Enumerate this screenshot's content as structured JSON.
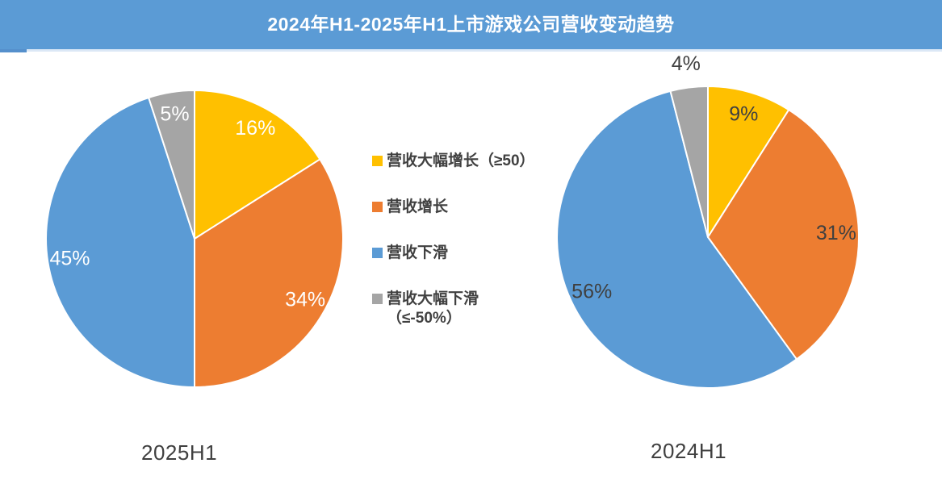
{
  "title": "2024年H1-2025年H1上市游戏公司营收变动趋势",
  "colors": {
    "banner": "#5B9BD5",
    "banner_title_text": "#FFFFFF",
    "body_text": "#404040",
    "increase_large": "#FFC000",
    "increase": "#ED7D31",
    "decrease": "#5B9BD5",
    "decrease_large": "#A5A5A5"
  },
  "legend": {
    "position": "center-between-pies",
    "items": [
      {
        "label": "营收大幅增长（≥50）",
        "color": "#FFC000"
      },
      {
        "label": "营收增长",
        "color": "#ED7D31"
      },
      {
        "label": "营收下滑",
        "color": "#5B9BD5"
      },
      {
        "label": "营收大幅下滑（≤-50%）",
        "color": "#A5A5A5"
      }
    ]
  },
  "chart_data": [
    {
      "type": "pie",
      "title": "2025H1",
      "categories": [
        "营收大幅增长（≥50）",
        "营收增长",
        "营收下滑",
        "营收大幅下滑（≤-50%）"
      ],
      "values": [
        16,
        34,
        45,
        5
      ],
      "labels": [
        "16%",
        "34%",
        "45%",
        "5%"
      ],
      "colors": [
        "#FFC000",
        "#ED7D31",
        "#5B9BD5",
        "#A5A5A5"
      ],
      "label_color": "#FFFFFF",
      "start_angle_deg": 0,
      "direction": "clockwise",
      "outside_labels": []
    },
    {
      "type": "pie",
      "title": "2024H1",
      "categories": [
        "营收大幅增长（≥50）",
        "营收增长",
        "营收下滑",
        "营收大幅下滑（≤-50%）"
      ],
      "values": [
        9,
        31,
        56,
        4
      ],
      "labels": [
        "9%",
        "31%",
        "56%",
        "4%"
      ],
      "colors": [
        "#FFC000",
        "#ED7D31",
        "#5B9BD5",
        "#A5A5A5"
      ],
      "label_color": "#404040",
      "start_angle_deg": 0,
      "direction": "clockwise",
      "outside_labels": [
        3
      ]
    }
  ]
}
